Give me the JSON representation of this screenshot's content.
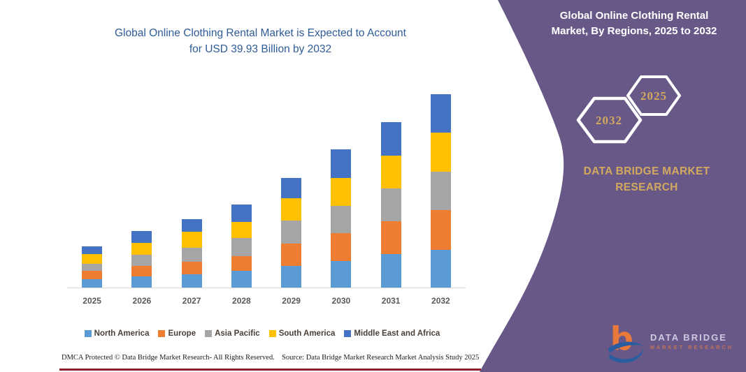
{
  "chart": {
    "title_line1": "Global Online Clothing Rental Market is Expected to Account",
    "title_line2": "for USD 39.93 Billion by 2032",
    "title_color": "#2F5B96"
  },
  "chart_data": {
    "type": "bar",
    "stacked": true,
    "unit": "USD Billion",
    "categories": [
      "2025",
      "2026",
      "2027",
      "2028",
      "2029",
      "2030",
      "2031",
      "2032"
    ],
    "series": [
      {
        "name": "North America",
        "color": "#5B9BD5",
        "values": [
          1.8,
          2.3,
          2.7,
          3.5,
          4.5,
          5.5,
          6.9,
          7.86
        ]
      },
      {
        "name": "Europe",
        "color": "#ED7D31",
        "values": [
          1.7,
          2.2,
          2.6,
          3.0,
          4.6,
          5.8,
          6.8,
          8.1
        ]
      },
      {
        "name": "Asia Pacific",
        "color": "#A5A5A5",
        "values": [
          1.4,
          2.2,
          2.9,
          3.7,
          4.7,
          5.5,
          6.7,
          7.96
        ]
      },
      {
        "name": "South America",
        "color": "#FFC000",
        "values": [
          2.0,
          2.5,
          3.4,
          3.4,
          4.6,
          5.8,
          6.8,
          8.06
        ]
      },
      {
        "name": "Middle East and Africa",
        "color": "#4472C4",
        "values": [
          1.6,
          2.4,
          2.6,
          3.6,
          4.3,
          5.9,
          7.0,
          7.95
        ]
      }
    ],
    "totals": [
      8.5,
      11.6,
      14.2,
      17.2,
      22.7,
      28.5,
      34.2,
      39.93
    ],
    "title": "Global Online Clothing Rental Market is Expected to Account for USD 39.93 Billion by 2032",
    "xlabel": "",
    "ylabel": "",
    "y_axis_visible": false,
    "grid": false,
    "legend_position": "bottom",
    "stack_order_bottom_to_top": [
      "North America",
      "Europe",
      "Asia Pacific",
      "South America",
      "Middle East and Africa"
    ],
    "note": "Segment values estimated from bar pixel heights; 2032 total labeled as 39.93"
  },
  "panel": {
    "title_line1": "Global Online Clothing Rental",
    "title_line2": "Market, By Regions, 2025 to 2032",
    "hexagon_back_year": "2032",
    "hexagon_front_year": "2025",
    "brand_line1": "DATA BRIDGE MARKET",
    "brand_line2": "RESEARCH",
    "background_color": "#675887",
    "accent_gold": "#D2A95F"
  },
  "logo": {
    "name_top": "DATA BRIDGE",
    "name_bottom": "MARKET RESEARCH",
    "mark_orange": "#E8793A",
    "mark_blue": "#2a5d9f"
  },
  "footer": {
    "dmca": "DMCA Protected © Data Bridge Market Research-  All Rights Reserved.",
    "source": "Source: Data Bridge Market Research  Market Analysis Study 2025",
    "divider_color": "#8B1E2D"
  }
}
